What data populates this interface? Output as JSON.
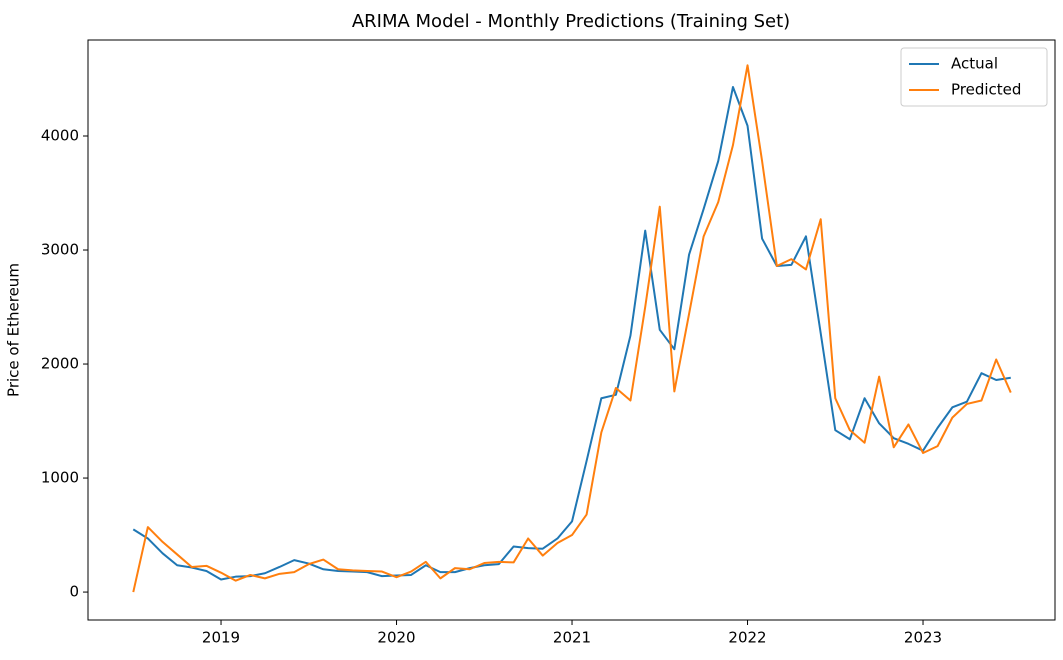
{
  "chart_data": {
    "type": "line",
    "title": "ARIMA Model - Monthly Predictions (Training Set)",
    "y_label": "Price of Ethereum",
    "x": [
      2018.5,
      2018.583,
      2018.667,
      2018.75,
      2018.833,
      2018.917,
      2019,
      2019.083,
      2019.167,
      2019.25,
      2019.333,
      2019.417,
      2019.5,
      2019.583,
      2019.667,
      2019.75,
      2019.833,
      2019.917,
      2020,
      2020.083,
      2020.167,
      2020.25,
      2020.333,
      2020.417,
      2020.5,
      2020.583,
      2020.667,
      2020.75,
      2020.833,
      2020.917,
      2021,
      2021.083,
      2021.167,
      2021.25,
      2021.333,
      2021.417,
      2021.5,
      2021.583,
      2021.667,
      2021.75,
      2021.833,
      2021.917,
      2022,
      2022.083,
      2022.167,
      2022.25,
      2022.333,
      2022.417,
      2022.5,
      2022.583,
      2022.667,
      2022.75,
      2022.833,
      2022.917,
      2023,
      2023.083,
      2023.167,
      2023.25,
      2023.333,
      2023.417,
      2023.5
    ],
    "series": [
      {
        "name": "Actual",
        "color": "#1f77b4",
        "values": [
          550,
          470,
          340,
          235,
          215,
          185,
          110,
          135,
          140,
          165,
          220,
          280,
          250,
          200,
          185,
          180,
          175,
          140,
          145,
          150,
          235,
          175,
          175,
          210,
          235,
          245,
          400,
          385,
          380,
          470,
          620,
          1150,
          1700,
          1730,
          2250,
          3170,
          2300,
          2130,
          2960,
          3360,
          3780,
          4430,
          4090,
          3100,
          2860,
          2870,
          3120,
          2270,
          1420,
          1340,
          1700,
          1480,
          1350,
          1300,
          1240,
          1440,
          1620,
          1670,
          1920,
          1860,
          1880
        ]
      },
      {
        "name": "Predicted",
        "color": "#ff7f0e",
        "values": [
          0,
          570,
          440,
          330,
          220,
          230,
          170,
          100,
          150,
          120,
          160,
          175,
          245,
          285,
          200,
          190,
          185,
          180,
          130,
          180,
          265,
          120,
          210,
          200,
          255,
          265,
          260,
          470,
          320,
          430,
          500,
          680,
          1400,
          1790,
          1680,
          2500,
          3380,
          1760,
          2440,
          3120,
          3420,
          3920,
          4620,
          3780,
          2860,
          2920,
          2830,
          3270,
          1700,
          1420,
          1310,
          1890,
          1270,
          1470,
          1220,
          1280,
          1530,
          1650,
          1680,
          2040,
          1750
        ]
      }
    ],
    "xlim": [
      2018.242,
      2023.752
    ],
    "xticks": [
      2019,
      2020,
      2021,
      2022,
      2023
    ],
    "ylim": [
      -245,
      4842
    ],
    "yticks": [
      0,
      1000,
      2000,
      3000,
      4000
    ],
    "legend": "upper right"
  }
}
